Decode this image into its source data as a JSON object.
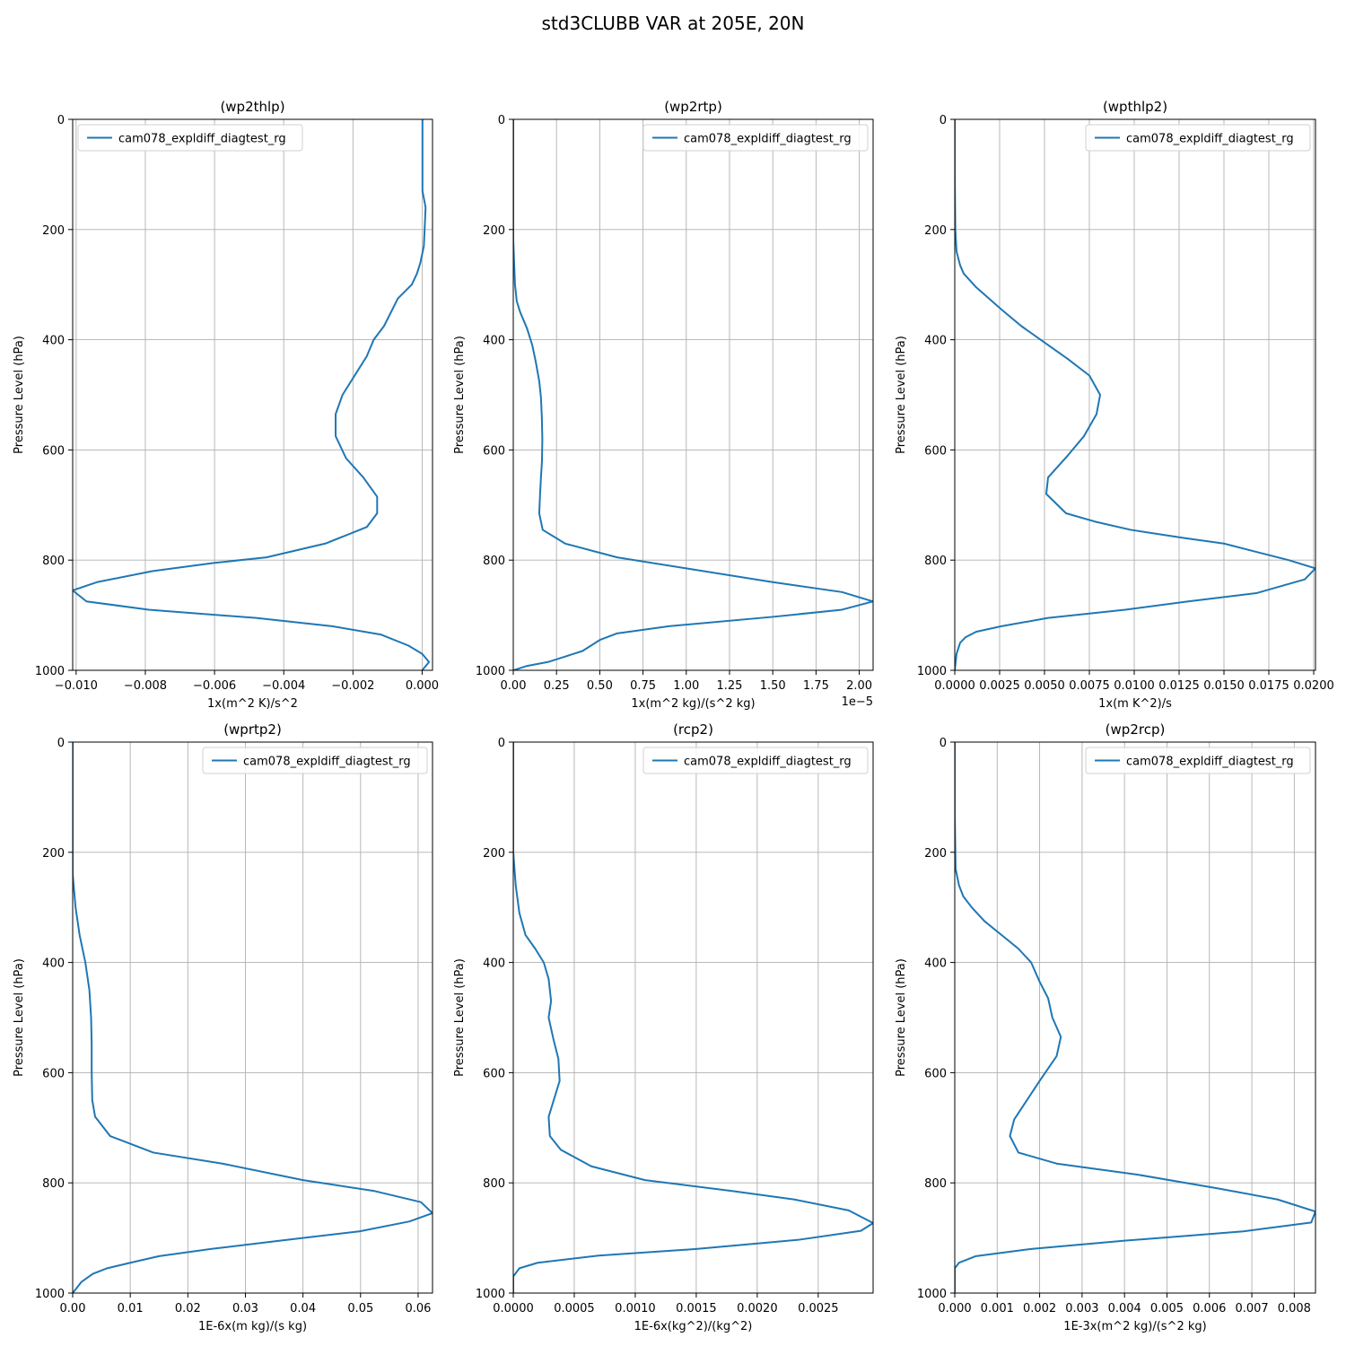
{
  "figure": {
    "suptitle": "std3CLUBB VAR at 205E, 20N",
    "line_color": "#1f77b4",
    "grid_color": "#b0b0b0"
  },
  "chart_data": [
    {
      "type": "line",
      "title": "(wp2thlp)",
      "xlabel": "1x(m^2 K)/s^2",
      "ylabel": "Pressure Level (hPa)",
      "xlim": [
        -0.0101,
        0.0003
      ],
      "ylim": [
        1000,
        0
      ],
      "xticks": [
        -0.01,
        -0.008,
        -0.006,
        -0.004,
        -0.002,
        0.0
      ],
      "xtick_labels": [
        "−0.010",
        "−0.008",
        "−0.006",
        "−0.004",
        "−0.002",
        "0.000"
      ],
      "yticks": [
        0,
        200,
        400,
        600,
        800,
        1000
      ],
      "ytick_labels": [
        "0",
        "200",
        "400",
        "600",
        "800",
        "1000"
      ],
      "offset_text": "",
      "legend": "top-left",
      "series": [
        {
          "name": "cam078_expldiff_diagtest_rg",
          "points": [
            [
              1e-05,
              0
            ],
            [
              1e-05,
              130
            ],
            [
              0.0001,
              160
            ],
            [
              5e-05,
              230
            ],
            [
              -5e-05,
              260
            ],
            [
              -0.00015,
              280
            ],
            [
              -0.0003,
              300
            ],
            [
              -0.0007,
              325
            ],
            [
              -0.0011,
              375
            ],
            [
              -0.0014,
              400
            ],
            [
              -0.0016,
              430
            ],
            [
              -0.002,
              470
            ],
            [
              -0.0023,
              500
            ],
            [
              -0.0025,
              535
            ],
            [
              -0.0025,
              575
            ],
            [
              -0.0022,
              615
            ],
            [
              -0.0017,
              650
            ],
            [
              -0.0013,
              685
            ],
            [
              -0.0013,
              715
            ],
            [
              -0.0016,
              740
            ],
            [
              -0.0028,
              770
            ],
            [
              -0.0045,
              795
            ],
            [
              -0.006,
              805
            ],
            [
              -0.0078,
              820
            ],
            [
              -0.0094,
              840
            ],
            [
              -0.0101,
              855
            ],
            [
              -0.0097,
              875
            ],
            [
              -0.0079,
              890
            ],
            [
              -0.0048,
              905
            ],
            [
              -0.0026,
              920
            ],
            [
              -0.0012,
              935
            ],
            [
              -0.0004,
              955
            ],
            [
              0.0,
              970
            ],
            [
              0.0002,
              985
            ],
            [
              0.0,
              1000
            ]
          ]
        }
      ]
    },
    {
      "type": "line",
      "title": "(wp2rtp)",
      "xlabel": "1x(m^2 kg)/(s^2 kg)",
      "ylabel": "Pressure Level (hPa)",
      "xlim": [
        0,
        2.08
      ],
      "ylim": [
        1000,
        0
      ],
      "xticks": [
        0.0,
        0.25,
        0.5,
        0.75,
        1.0,
        1.25,
        1.5,
        1.75,
        2.0
      ],
      "xtick_labels": [
        "0.00",
        "0.25",
        "0.50",
        "0.75",
        "1.00",
        "1.25",
        "1.50",
        "1.75",
        "2.00"
      ],
      "yticks": [
        0,
        200,
        400,
        600,
        800,
        1000
      ],
      "ytick_labels": [
        "0",
        "200",
        "400",
        "600",
        "800",
        "1000"
      ],
      "offset_text": "1e−5",
      "legend": "top-right",
      "series": [
        {
          "name": "cam078_expldiff_diagtest_rg",
          "points": [
            [
              0,
              0
            ],
            [
              0,
              220
            ],
            [
              0.005,
              260
            ],
            [
              0.01,
              300
            ],
            [
              0.02,
              330
            ],
            [
              0.04,
              350
            ],
            [
              0.08,
              380
            ],
            [
              0.11,
              410
            ],
            [
              0.13,
              440
            ],
            [
              0.15,
              475
            ],
            [
              0.16,
              505
            ],
            [
              0.165,
              540
            ],
            [
              0.168,
              580
            ],
            [
              0.166,
              620
            ],
            [
              0.16,
              650
            ],
            [
              0.155,
              680
            ],
            [
              0.15,
              715
            ],
            [
              0.17,
              745
            ],
            [
              0.3,
              770
            ],
            [
              0.48,
              785
            ],
            [
              0.6,
              795
            ],
            [
              1.0,
              815
            ],
            [
              1.5,
              840
            ],
            [
              1.9,
              858
            ],
            [
              2.08,
              875
            ],
            [
              1.9,
              890
            ],
            [
              1.5,
              903
            ],
            [
              0.9,
              920
            ],
            [
              0.6,
              933
            ],
            [
              0.5,
              945
            ],
            [
              0.45,
              955
            ],
            [
              0.4,
              965
            ],
            [
              0.3,
              975
            ],
            [
              0.2,
              985
            ],
            [
              0.08,
              992
            ],
            [
              0.0,
              1000
            ]
          ]
        }
      ]
    },
    {
      "type": "line",
      "title": "(wpthlp2)",
      "xlabel": "1x(m K^2)/s",
      "ylabel": "Pressure Level (hPa)",
      "xlim": [
        0,
        0.0201
      ],
      "ylim": [
        1000,
        0
      ],
      "xticks": [
        0,
        0.0025,
        0.005,
        0.0075,
        0.01,
        0.0125,
        0.015,
        0.0175,
        0.02
      ],
      "xtick_labels": [
        "0.0000",
        "0.0025",
        "0.0050",
        "0.0075",
        "0.0100",
        "0.0125",
        "0.0150",
        "0.0175",
        "0.0200"
      ],
      "yticks": [
        0,
        200,
        400,
        600,
        800,
        1000
      ],
      "ytick_labels": [
        "0",
        "200",
        "400",
        "600",
        "800",
        "1000"
      ],
      "offset_text": "",
      "legend": "top-right",
      "series": [
        {
          "name": "cam078_expldiff_diagtest_rg",
          "points": [
            [
              0,
              0
            ],
            [
              0,
              100
            ],
            [
              3e-05,
              200
            ],
            [
              0.0001,
              240
            ],
            [
              0.0003,
              265
            ],
            [
              0.0005,
              280
            ],
            [
              0.0012,
              305
            ],
            [
              0.0026,
              345
            ],
            [
              0.0037,
              375
            ],
            [
              0.005,
              405
            ],
            [
              0.0063,
              435
            ],
            [
              0.0075,
              465
            ],
            [
              0.0081,
              500
            ],
            [
              0.0079,
              535
            ],
            [
              0.0072,
              575
            ],
            [
              0.0063,
              610
            ],
            [
              0.0052,
              650
            ],
            [
              0.0051,
              680
            ],
            [
              0.0062,
              715
            ],
            [
              0.0078,
              730
            ],
            [
              0.0098,
              745
            ],
            [
              0.0128,
              760
            ],
            [
              0.015,
              770
            ],
            [
              0.0186,
              800
            ],
            [
              0.0201,
              815
            ],
            [
              0.0195,
              835
            ],
            [
              0.0168,
              860
            ],
            [
              0.013,
              875
            ],
            [
              0.0095,
              890
            ],
            [
              0.0052,
              905
            ],
            [
              0.0026,
              920
            ],
            [
              0.0012,
              930
            ],
            [
              0.0006,
              940
            ],
            [
              0.0003,
              950
            ],
            [
              0.0001,
              970
            ],
            [
              0,
              1000
            ]
          ]
        }
      ]
    },
    {
      "type": "line",
      "title": "(wprtp2)",
      "xlabel": "1E-6x(m kg)/(s kg)",
      "ylabel": "Pressure Level (hPa)",
      "xlim": [
        0,
        0.0625
      ],
      "ylim": [
        1000,
        0
      ],
      "xticks": [
        0,
        0.01,
        0.02,
        0.03,
        0.04,
        0.05,
        0.06
      ],
      "xtick_labels": [
        "0.00",
        "0.01",
        "0.02",
        "0.03",
        "0.04",
        "0.05",
        "0.06"
      ],
      "yticks": [
        0,
        200,
        400,
        600,
        800,
        1000
      ],
      "ytick_labels": [
        "0",
        "200",
        "400",
        "600",
        "800",
        "1000"
      ],
      "offset_text": "",
      "legend": "top-right",
      "series": [
        {
          "name": "cam078_expldiff_diagtest_rg",
          "points": [
            [
              0,
              0
            ],
            [
              0,
              240
            ],
            [
              0.0005,
              300
            ],
            [
              0.0012,
              350
            ],
            [
              0.0022,
              400
            ],
            [
              0.0029,
              450
            ],
            [
              0.0032,
              500
            ],
            [
              0.0033,
              550
            ],
            [
              0.0033,
              600
            ],
            [
              0.0034,
              650
            ],
            [
              0.0039,
              680
            ],
            [
              0.0065,
              715
            ],
            [
              0.014,
              745
            ],
            [
              0.026,
              765
            ],
            [
              0.04,
              795
            ],
            [
              0.0525,
              815
            ],
            [
              0.0605,
              835
            ],
            [
              0.0625,
              855
            ],
            [
              0.0585,
              870
            ],
            [
              0.0498,
              888
            ],
            [
              0.036,
              905
            ],
            [
              0.024,
              920
            ],
            [
              0.015,
              933
            ],
            [
              0.01,
              945
            ],
            [
              0.006,
              955
            ],
            [
              0.0035,
              965
            ],
            [
              0.0015,
              980
            ],
            [
              0,
              1000
            ]
          ]
        }
      ]
    },
    {
      "type": "line",
      "title": "(rcp2)",
      "xlabel": "1E-6x(kg^2)/(kg^2)",
      "ylabel": "Pressure Level (hPa)",
      "xlim": [
        0,
        0.00295
      ],
      "ylim": [
        1000,
        0
      ],
      "xticks": [
        0,
        0.0005,
        0.001,
        0.0015,
        0.002,
        0.0025
      ],
      "xtick_labels": [
        "0.0000",
        "0.0005",
        "0.0010",
        "0.0015",
        "0.0020",
        "0.0025"
      ],
      "yticks": [
        0,
        200,
        400,
        600,
        800,
        1000
      ],
      "ytick_labels": [
        "0",
        "200",
        "400",
        "600",
        "800",
        "1000"
      ],
      "offset_text": "",
      "legend": "top-right",
      "series": [
        {
          "name": "cam078_expldiff_diagtest_rg",
          "points": [
            [
              0,
              0
            ],
            [
              0,
              200
            ],
            [
              2e-05,
              260
            ],
            [
              5e-05,
              310
            ],
            [
              0.0001,
              350
            ],
            [
              0.00018,
              375
            ],
            [
              0.00025,
              400
            ],
            [
              0.00029,
              430
            ],
            [
              0.00031,
              470
            ],
            [
              0.00029,
              500
            ],
            [
              0.00033,
              540
            ],
            [
              0.00037,
              575
            ],
            [
              0.00038,
              615
            ],
            [
              0.00029,
              680
            ],
            [
              0.0003,
              715
            ],
            [
              0.00039,
              740
            ],
            [
              0.00064,
              770
            ],
            [
              0.00108,
              795
            ],
            [
              0.0018,
              815
            ],
            [
              0.0023,
              830
            ],
            [
              0.00275,
              850
            ],
            [
              0.00295,
              873
            ],
            [
              0.00285,
              887
            ],
            [
              0.00235,
              903
            ],
            [
              0.0015,
              920
            ],
            [
              0.0007,
              932
            ],
            [
              0.0002,
              945
            ],
            [
              5e-05,
              955
            ],
            [
              0,
              970
            ],
            [
              0,
              1000
            ]
          ]
        }
      ]
    },
    {
      "type": "line",
      "title": "(wp2rcp)",
      "xlabel": "1E-3x(m^2 kg)/(s^2 kg)",
      "ylabel": "Pressure Level (hPa)",
      "xlim": [
        0,
        0.0085
      ],
      "ylim": [
        1000,
        0
      ],
      "xticks": [
        0,
        0.001,
        0.002,
        0.003,
        0.004,
        0.005,
        0.006,
        0.007,
        0.008
      ],
      "xtick_labels": [
        "0.000",
        "0.001",
        "0.002",
        "0.003",
        "0.004",
        "0.005",
        "0.006",
        "0.007",
        "0.008"
      ],
      "yticks": [
        0,
        200,
        400,
        600,
        800,
        1000
      ],
      "ytick_labels": [
        "0",
        "200",
        "400",
        "600",
        "800",
        "1000"
      ],
      "offset_text": "",
      "legend": "top-right",
      "series": [
        {
          "name": "cam078_expldiff_diagtest_rg",
          "points": [
            [
              0,
              0
            ],
            [
              0,
              130
            ],
            [
              2e-05,
              230
            ],
            [
              0.0001,
              260
            ],
            [
              0.0002,
              280
            ],
            [
              0.0004,
              300
            ],
            [
              0.0007,
              325
            ],
            [
              0.0011,
              350
            ],
            [
              0.0015,
              375
            ],
            [
              0.0018,
              400
            ],
            [
              0.002,
              435
            ],
            [
              0.0022,
              465
            ],
            [
              0.0023,
              500
            ],
            [
              0.0025,
              535
            ],
            [
              0.0024,
              570
            ],
            [
              0.002,
              615
            ],
            [
              0.0017,
              650
            ],
            [
              0.0014,
              685
            ],
            [
              0.0013,
              715
            ],
            [
              0.0015,
              745
            ],
            [
              0.0024,
              765
            ],
            [
              0.0043,
              785
            ],
            [
              0.0062,
              810
            ],
            [
              0.0076,
              830
            ],
            [
              0.0085,
              852
            ],
            [
              0.0084,
              872
            ],
            [
              0.0068,
              888
            ],
            [
              0.004,
              905
            ],
            [
              0.0018,
              920
            ],
            [
              0.0005,
              933
            ],
            [
              0.0001,
              945
            ],
            [
              0,
              955
            ],
            [
              0,
              1000
            ]
          ]
        }
      ]
    }
  ]
}
